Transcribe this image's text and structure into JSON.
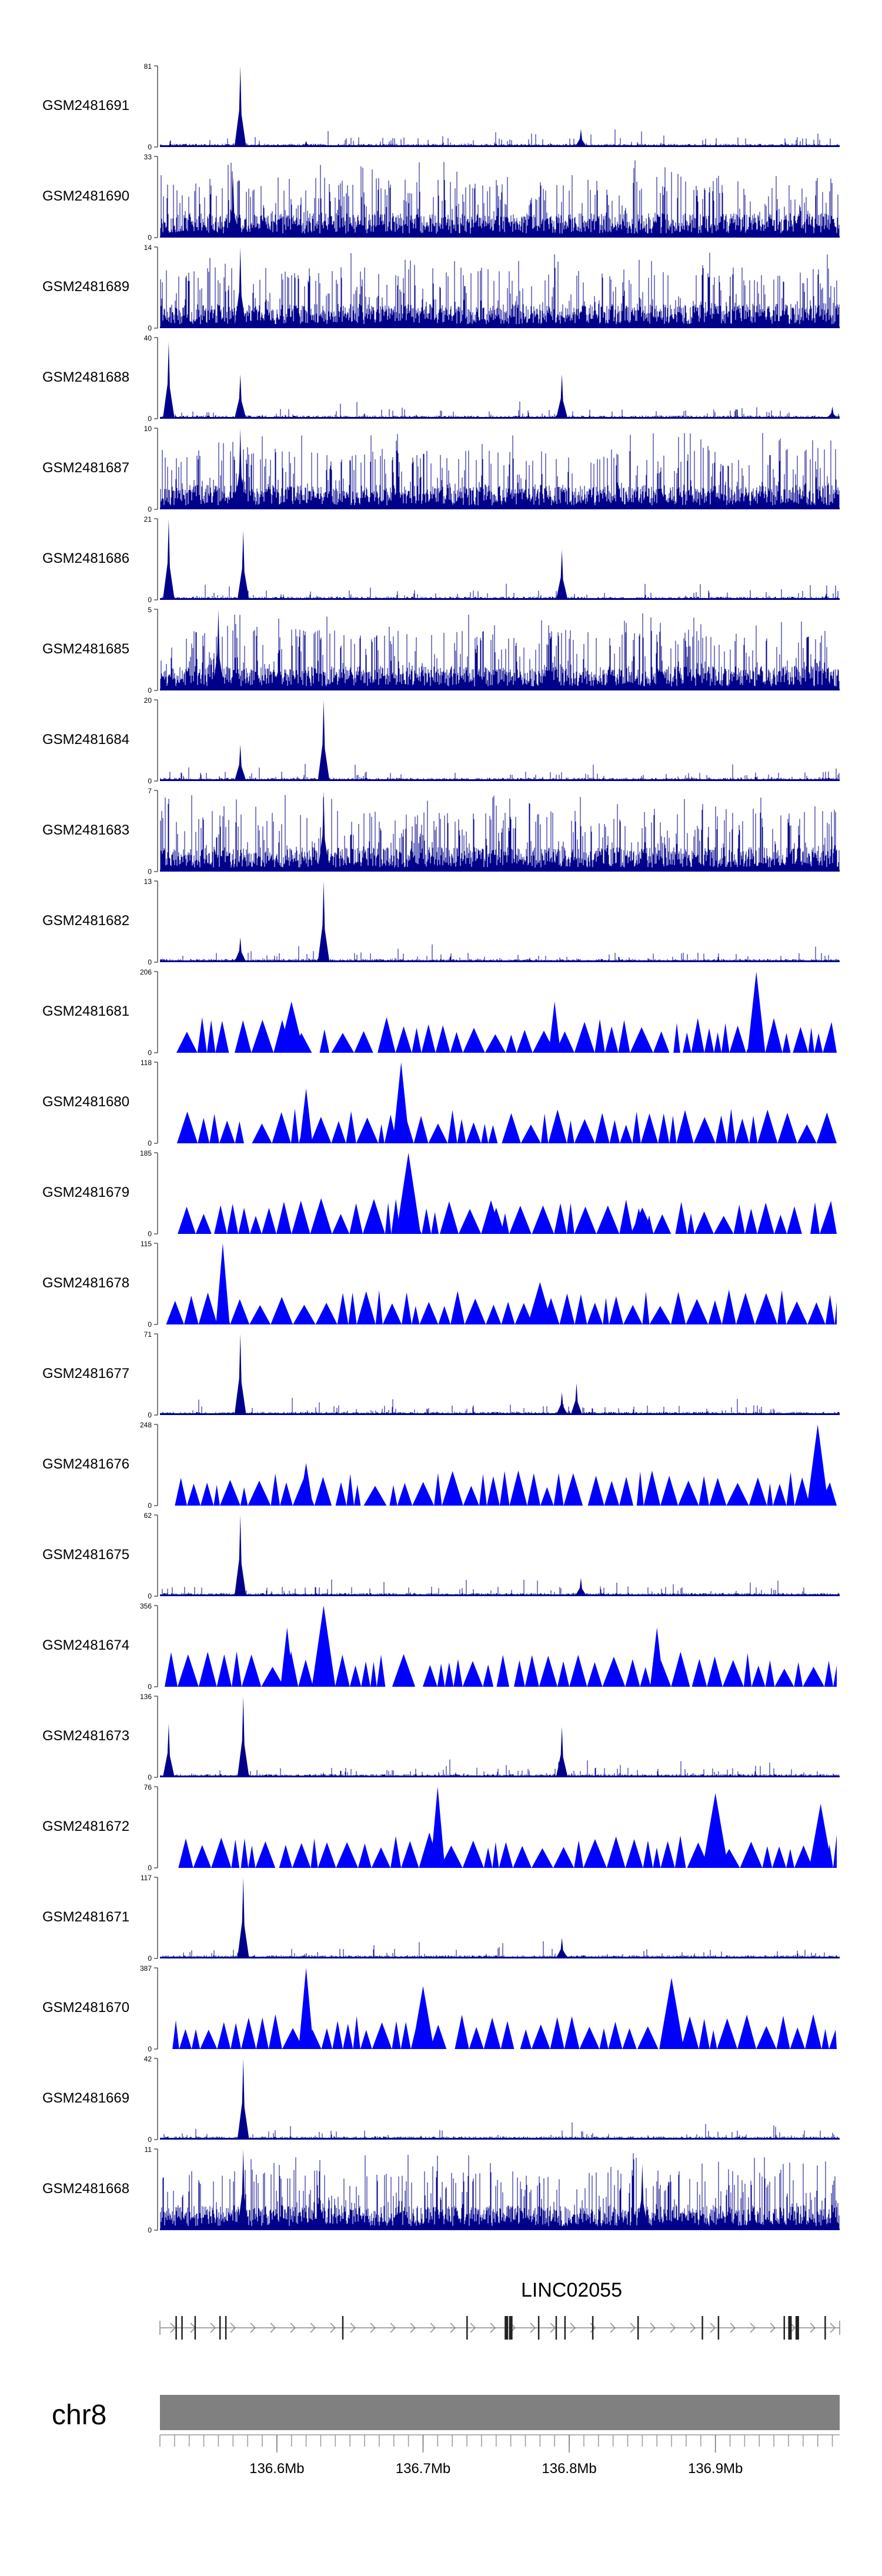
{
  "chart_data": {
    "type": "area",
    "x_unit": "Mb",
    "chromosome": "chr8",
    "x_ticks": [
      {
        "value": 136.6,
        "label": "136.6Mb"
      },
      {
        "value": 136.7,
        "label": "136.7Mb"
      },
      {
        "value": 136.8,
        "label": "136.8Mb"
      },
      {
        "value": 136.9,
        "label": "136.9Mb"
      }
    ],
    "xlim": [
      136.52,
      136.985
    ],
    "series_color": "#0000ff",
    "series_dark_color": "#00008b",
    "tracks": [
      {
        "name": "GSM2481691",
        "ymin": 0,
        "ymax": 81,
        "style": "spiky",
        "peaks": [
          [
            136.575,
            81
          ],
          [
            136.808,
            18
          ],
          [
            136.62,
            6
          ]
        ]
      },
      {
        "name": "GSM2481690",
        "ymin": 0,
        "ymax": 33,
        "style": "dense",
        "peaks": [
          [
            136.57,
            25
          ]
        ]
      },
      {
        "name": "GSM2481689",
        "ymin": 0,
        "ymax": 14,
        "style": "dense",
        "peaks": [
          [
            136.575,
            14
          ]
        ]
      },
      {
        "name": "GSM2481688",
        "ymin": 0,
        "ymax": 40,
        "style": "spiky",
        "peaks": [
          [
            136.526,
            38
          ],
          [
            136.575,
            22
          ],
          [
            136.795,
            22
          ],
          [
            136.98,
            6
          ]
        ]
      },
      {
        "name": "GSM2481687",
        "ymin": 0,
        "ymax": 10,
        "style": "dense",
        "peaks": [
          [
            136.575,
            10
          ]
        ]
      },
      {
        "name": "GSM2481686",
        "ymin": 0,
        "ymax": 21,
        "style": "spiky",
        "peaks": [
          [
            136.526,
            21
          ],
          [
            136.577,
            18
          ],
          [
            136.795,
            13
          ]
        ]
      },
      {
        "name": "GSM2481685",
        "ymin": 0,
        "ymax": 5,
        "style": "dense",
        "peaks": [
          [
            136.56,
            5
          ]
        ]
      },
      {
        "name": "GSM2481684",
        "ymin": 0,
        "ymax": 20,
        "style": "spiky",
        "peaks": [
          [
            136.632,
            20
          ],
          [
            136.575,
            9
          ]
        ]
      },
      {
        "name": "GSM2481683",
        "ymin": 0,
        "ymax": 7,
        "style": "dense",
        "peaks": [
          [
            136.632,
            7
          ]
        ]
      },
      {
        "name": "GSM2481682",
        "ymin": 0,
        "ymax": 13,
        "style": "spiky",
        "peaks": [
          [
            136.632,
            13
          ],
          [
            136.575,
            4
          ]
        ]
      },
      {
        "name": "GSM2481681",
        "ymin": 0,
        "ymax": 206,
        "style": "triangle",
        "peaks": [
          [
            136.61,
            130
          ],
          [
            136.79,
            130
          ],
          [
            136.928,
            206
          ]
        ]
      },
      {
        "name": "GSM2481680",
        "ymin": 0,
        "ymax": 118,
        "style": "triangle",
        "peaks": [
          [
            136.685,
            118
          ],
          [
            136.62,
            80
          ]
        ]
      },
      {
        "name": "GSM2481679",
        "ymin": 0,
        "ymax": 185,
        "style": "triangle",
        "peaks": [
          [
            136.69,
            185
          ],
          [
            136.75,
            60
          ],
          [
            136.85,
            60
          ]
        ]
      },
      {
        "name": "GSM2481678",
        "ymin": 0,
        "ymax": 115,
        "style": "triangle",
        "peaks": [
          [
            136.563,
            115
          ],
          [
            136.78,
            60
          ]
        ]
      },
      {
        "name": "GSM2481677",
        "ymin": 0,
        "ymax": 71,
        "style": "spiky",
        "peaks": [
          [
            136.575,
            71
          ],
          [
            136.795,
            20
          ],
          [
            136.805,
            28
          ]
        ]
      },
      {
        "name": "GSM2481676",
        "ymin": 0,
        "ymax": 248,
        "style": "triangle",
        "peaks": [
          [
            136.97,
            248
          ],
          [
            136.62,
            130
          ]
        ]
      },
      {
        "name": "GSM2481675",
        "ymin": 0,
        "ymax": 62,
        "style": "spiky",
        "peaks": [
          [
            136.575,
            62
          ],
          [
            136.808,
            14
          ]
        ]
      },
      {
        "name": "GSM2481674",
        "ymin": 0,
        "ymax": 356,
        "style": "triangle",
        "peaks": [
          [
            136.632,
            356
          ],
          [
            136.607,
            260
          ],
          [
            136.86,
            260
          ]
        ]
      },
      {
        "name": "GSM2481673",
        "ymin": 0,
        "ymax": 136,
        "style": "spiky",
        "peaks": [
          [
            136.577,
            136
          ],
          [
            136.526,
            90
          ],
          [
            136.795,
            85
          ]
        ]
      },
      {
        "name": "GSM2481672",
        "ymin": 0,
        "ymax": 76,
        "style": "triangle",
        "peaks": [
          [
            136.71,
            76
          ],
          [
            136.9,
            70
          ],
          [
            136.972,
            60
          ]
        ]
      },
      {
        "name": "GSM2481671",
        "ymin": 0,
        "ymax": 117,
        "style": "spiky",
        "peaks": [
          [
            136.577,
            117
          ],
          [
            136.795,
            30
          ]
        ]
      },
      {
        "name": "GSM2481670",
        "ymin": 0,
        "ymax": 387,
        "style": "triangle",
        "peaks": [
          [
            136.62,
            387
          ],
          [
            136.87,
            340
          ],
          [
            136.7,
            300
          ]
        ]
      },
      {
        "name": "GSM2481669",
        "ymin": 0,
        "ymax": 42,
        "style": "spiky",
        "peaks": [
          [
            136.577,
            42
          ]
        ]
      },
      {
        "name": "GSM2481668",
        "ymin": 0,
        "ymax": 11,
        "style": "dense",
        "peaks": [
          [
            136.577,
            11
          ],
          [
            136.85,
            9
          ]
        ]
      }
    ],
    "gene_track": {
      "gene_label": "LINC02055",
      "exons": [
        136.531,
        136.535,
        136.544,
        136.561,
        136.565,
        136.645,
        136.73,
        136.757,
        136.76,
        136.779,
        136.791,
        136.797,
        136.816,
        136.847,
        136.891,
        136.902,
        136.947,
        136.951,
        136.956,
        136.975
      ],
      "thick_exons": [
        136.757,
        136.76,
        136.951,
        136.956
      ]
    }
  }
}
